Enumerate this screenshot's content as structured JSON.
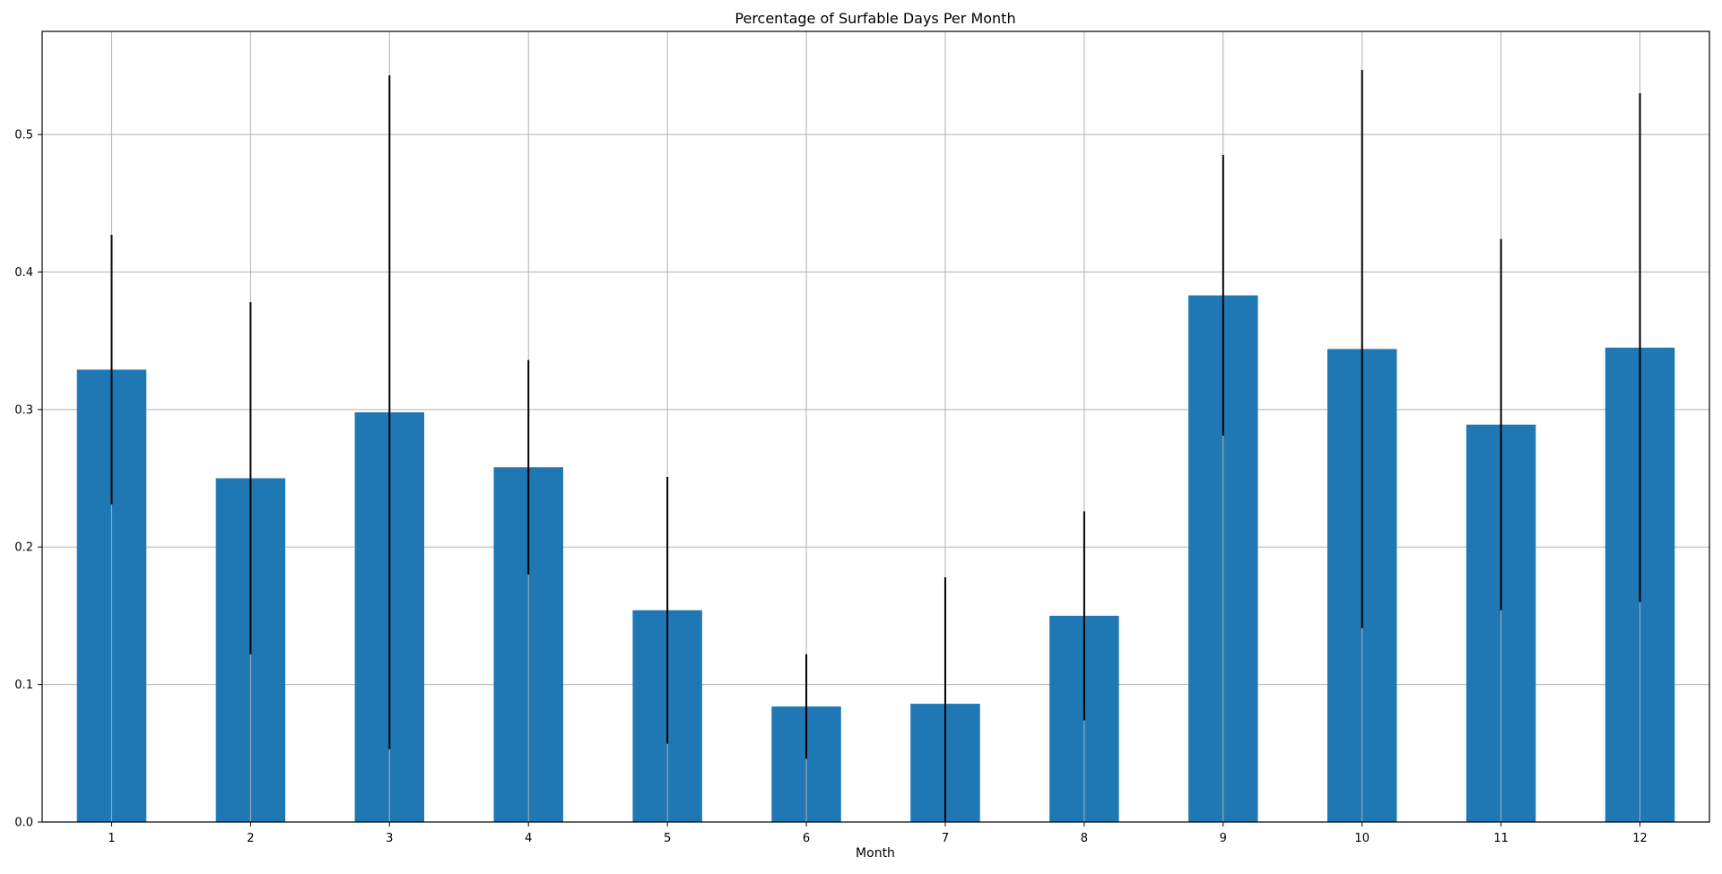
{
  "chart_data": {
    "type": "bar",
    "title": "Percentage of Surfable Days Per Month",
    "xlabel": "Month",
    "ylabel": "",
    "categories": [
      "1",
      "2",
      "3",
      "4",
      "5",
      "6",
      "7",
      "8",
      "9",
      "10",
      "11",
      "12"
    ],
    "values": [
      0.329,
      0.25,
      0.298,
      0.258,
      0.154,
      0.084,
      0.086,
      0.15,
      0.383,
      0.344,
      0.289,
      0.345
    ],
    "error": [
      0.098,
      0.128,
      0.245,
      0.078,
      0.097,
      0.038,
      0.092,
      0.076,
      0.102,
      0.203,
      0.135,
      0.185
    ],
    "ylim": [
      0,
      0.575
    ],
    "yticks": [
      0.0,
      0.1,
      0.2,
      0.3,
      0.4,
      0.5
    ],
    "ytick_labels": [
      "0.0",
      "0.1",
      "0.2",
      "0.3",
      "0.4",
      "0.5"
    ],
    "grid": true,
    "bar_color": "#1f77b4",
    "error_color": "#000000",
    "grid_color": "#b0b0b0"
  }
}
